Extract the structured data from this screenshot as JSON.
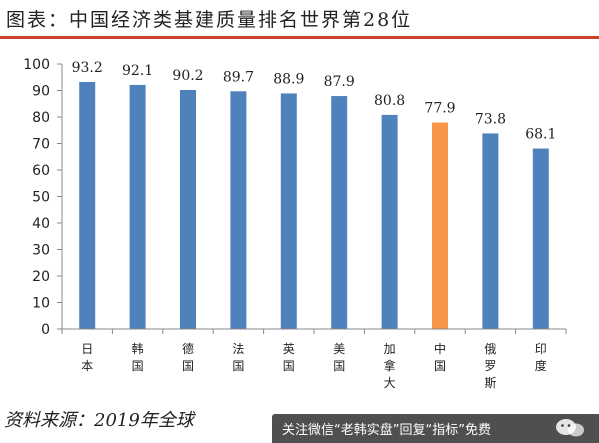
{
  "title": "图表：中国经济类基建质量排名世界第28位",
  "source_text": "资料来源：2019年全球",
  "overlay": {
    "text": "关注微信“老韩实盘”回复“指标”免费",
    "icon": "wechat-icon"
  },
  "colors": {
    "bar": "#4f81bd",
    "highlight": "#f79646",
    "title_rule": "#c9432b"
  },
  "chart_data": {
    "type": "bar",
    "title": "中国经济类基建质量排名世界第28位",
    "xlabel": "",
    "ylabel": "",
    "categories": [
      "日本",
      "韩国",
      "德国",
      "法国",
      "英国",
      "美国",
      "加拿大",
      "中国",
      "俄罗斯",
      "印度"
    ],
    "values": [
      93.2,
      92.1,
      90.2,
      89.7,
      88.9,
      87.9,
      80.8,
      77.9,
      73.8,
      68.1
    ],
    "value_labels": [
      "93.2",
      "92.1",
      "90.2",
      "89.7",
      "88.9",
      "87.9",
      "80.8",
      "77.9",
      "73.8",
      "68.1"
    ],
    "highlight_category": "中国",
    "ylim": [
      0,
      100
    ],
    "yticks": [
      0,
      10,
      20,
      30,
      40,
      50,
      60,
      70,
      80,
      90,
      100
    ],
    "grid": false,
    "legend": "none"
  }
}
